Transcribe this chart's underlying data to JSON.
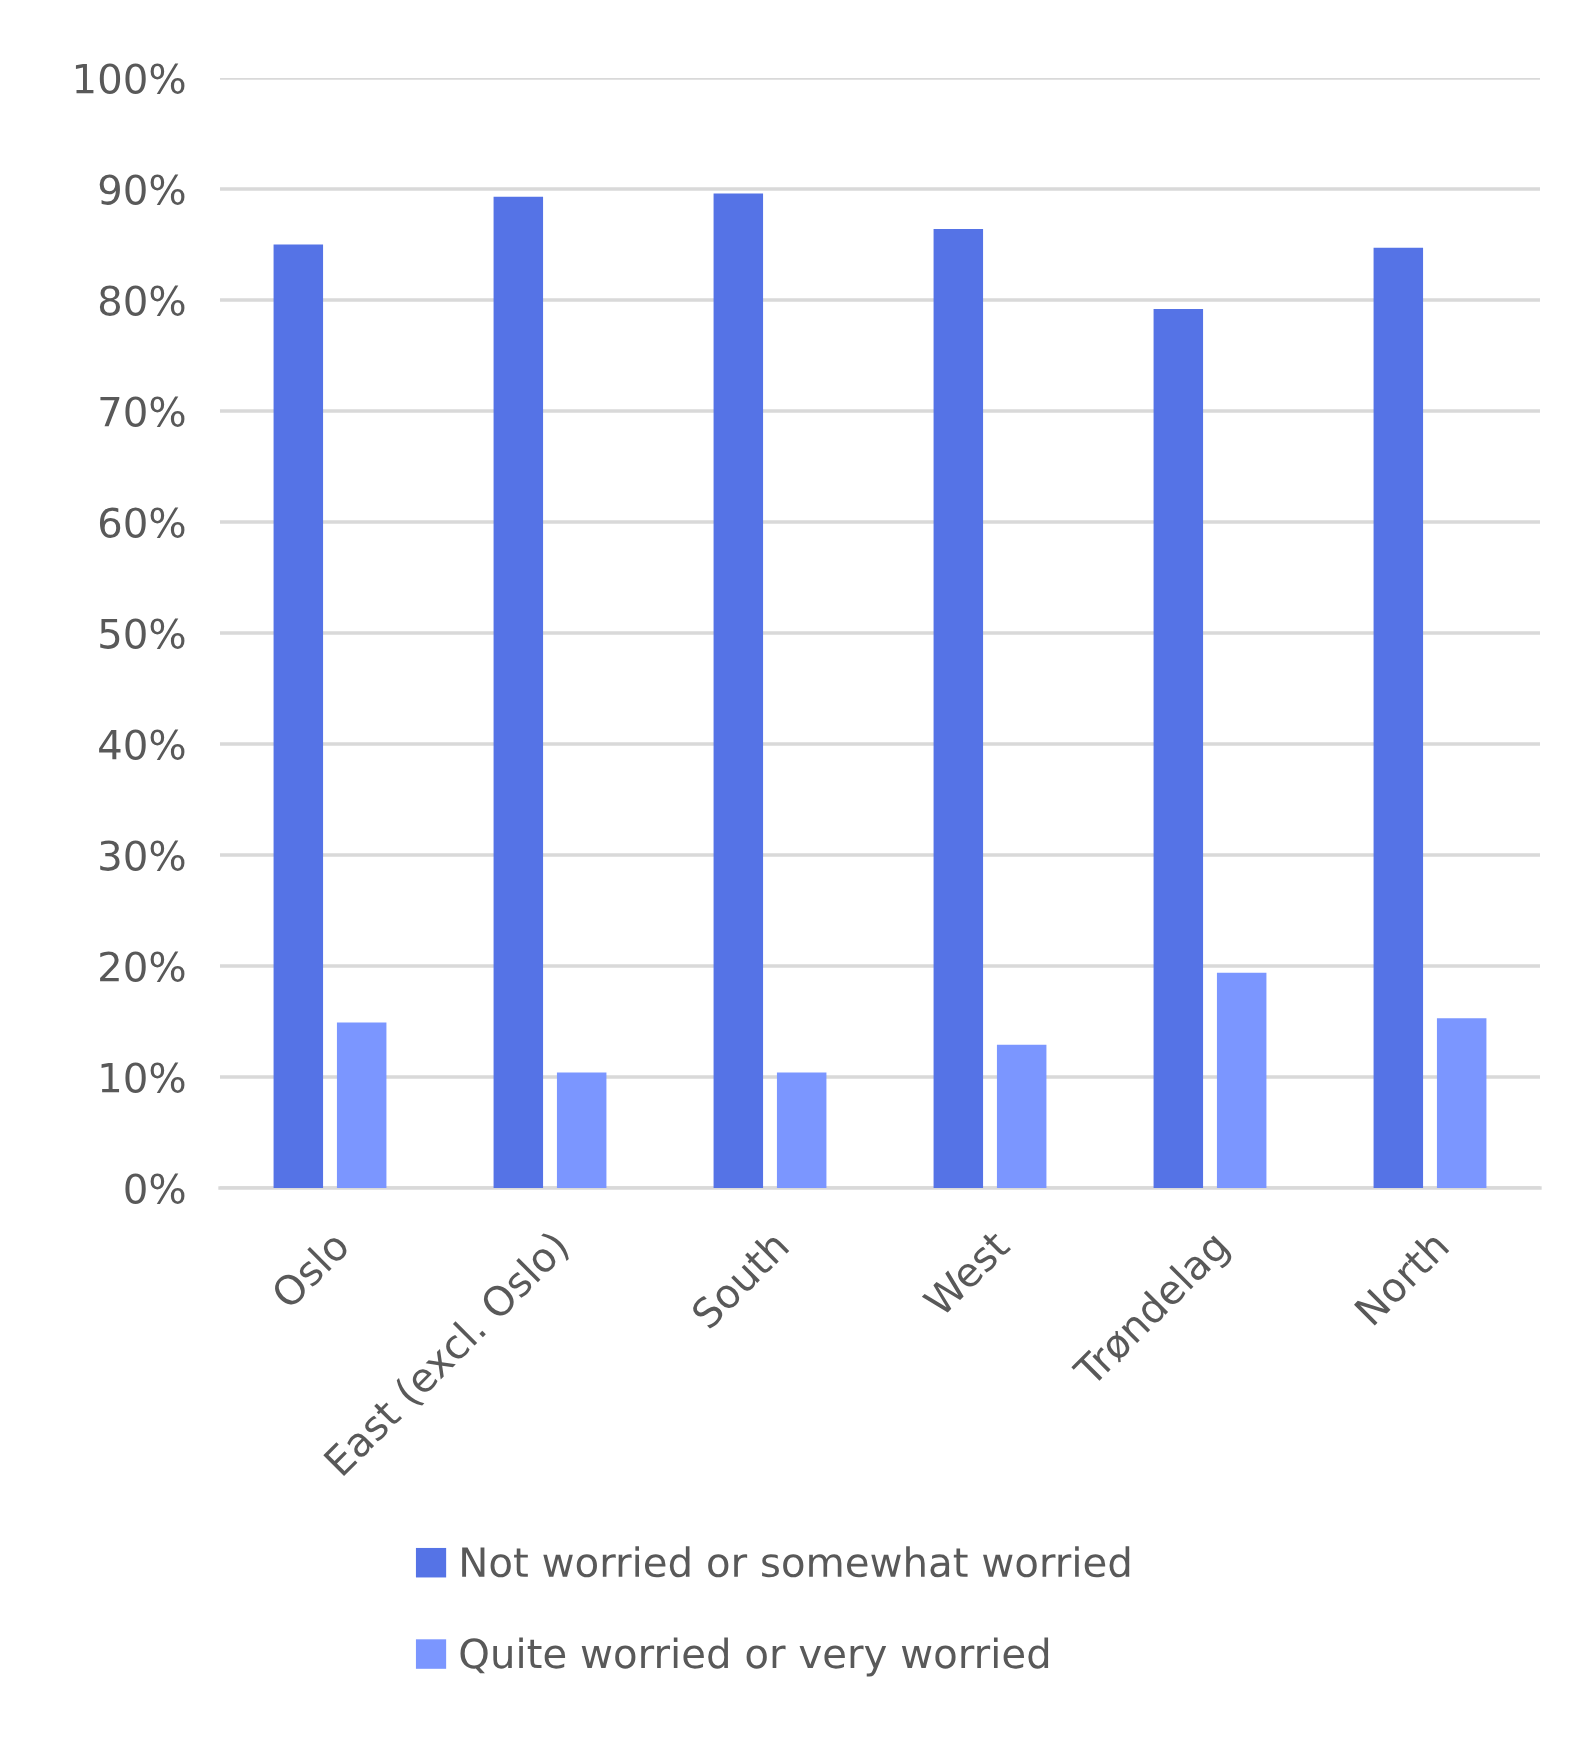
{
  "chart_data": {
    "type": "bar",
    "categories": [
      "Oslo",
      "East (excl. Oslo)",
      "South",
      "West",
      "Trøndelag",
      "North"
    ],
    "series": [
      {
        "name": "Not worried or somewhat worried",
        "color": "#5573e6",
        "values": [
          85.0,
          89.3,
          89.6,
          86.4,
          79.2,
          84.7
        ]
      },
      {
        "name": "Quite worried or very worried",
        "color": "#7b96ff",
        "values": [
          14.9,
          10.4,
          10.4,
          12.9,
          19.4,
          15.3
        ]
      }
    ],
    "ylim": [
      0,
      100
    ],
    "yticks": [
      {
        "value": 0,
        "label": "0%"
      },
      {
        "value": 10,
        "label": "10%"
      },
      {
        "value": 20,
        "label": "20%"
      },
      {
        "value": 30,
        "label": "30%"
      },
      {
        "value": 40,
        "label": "40%"
      },
      {
        "value": 50,
        "label": "50%"
      },
      {
        "value": 60,
        "label": "60%"
      },
      {
        "value": 70,
        "label": "70%"
      },
      {
        "value": 80,
        "label": "80%"
      },
      {
        "value": 90,
        "label": "90%"
      },
      {
        "value": 100,
        "label": "100%"
      }
    ],
    "grid": "y",
    "legend": "bottom"
  }
}
